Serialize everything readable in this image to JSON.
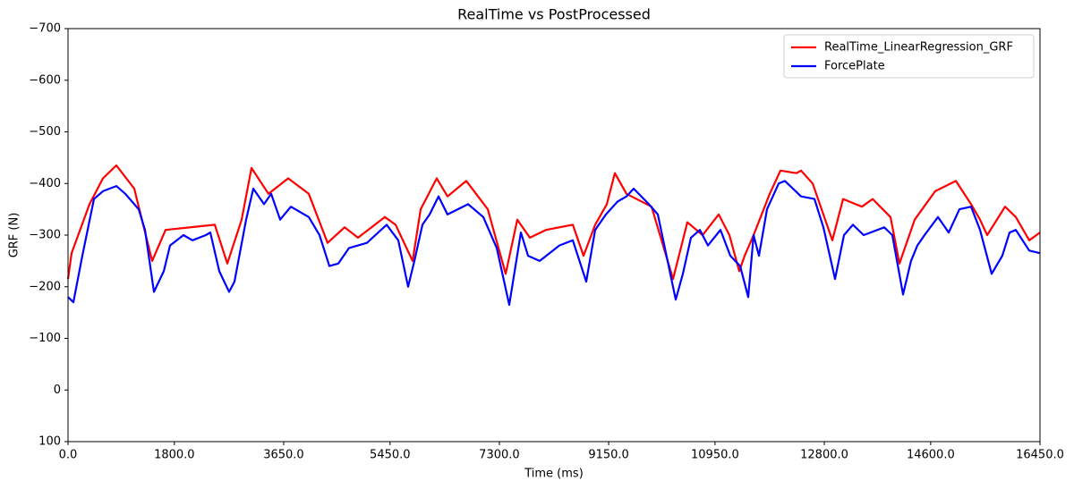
{
  "chart_data": {
    "type": "line",
    "title": "RealTime vs PostProcessed",
    "xlabel": "Time (ms)",
    "ylabel": "GRF (N)",
    "xlim": [
      0,
      16450
    ],
    "ylim": [
      100,
      -700
    ],
    "xticks": [
      {
        "value": 0,
        "label": "0.0"
      },
      {
        "value": 1800,
        "label": "1800.0"
      },
      {
        "value": 3650,
        "label": "3650.0"
      },
      {
        "value": 5450,
        "label": "5450.0"
      },
      {
        "value": 7300,
        "label": "7300.0"
      },
      {
        "value": 9150,
        "label": "9150.0"
      },
      {
        "value": 10950,
        "label": "10950.0"
      },
      {
        "value": 12800,
        "label": "12800.0"
      },
      {
        "value": 14600,
        "label": "14600.0"
      },
      {
        "value": 16450,
        "label": "16450.0"
      }
    ],
    "yticks": [
      {
        "value": -700,
        "label": "−700"
      },
      {
        "value": -600,
        "label": "−600"
      },
      {
        "value": -500,
        "label": "−500"
      },
      {
        "value": -400,
        "label": "−400"
      },
      {
        "value": -300,
        "label": "−300"
      },
      {
        "value": -200,
        "label": "−200"
      },
      {
        "value": -100,
        "label": "−100"
      },
      0,
      100
    ],
    "legend": "upper right",
    "grid": false,
    "series": [
      {
        "name": "RealTime_LinearRegression_GRF",
        "color": "#ff0000",
        "x": [
          0,
          61,
          364,
          591,
          818,
          1121,
          1272,
          1424,
          1651,
          2484,
          2696,
          2938,
          3105,
          3393,
          3726,
          4075,
          4393,
          4680,
          4908,
          5362,
          5544,
          5832,
          5968,
          6195,
          6241,
          6422,
          6740,
          7104,
          7407,
          7604,
          7816,
          8088,
          8543,
          8725,
          8922,
          9119,
          9255,
          9452,
          9876,
          10239,
          10482,
          10739,
          11012,
          11194,
          11360,
          11451,
          11603,
          11875,
          12057,
          12330,
          12405,
          12602,
          12936,
          13117,
          13435,
          13617,
          13920,
          14072,
          14329,
          14677,
          15026,
          15283,
          15435,
          15556,
          15859,
          16041,
          16268,
          16450
        ],
        "values": [
          -215,
          -265,
          -360,
          -410,
          -435,
          -390,
          -320,
          -250,
          -310,
          -320,
          -245,
          -330,
          -430,
          -380,
          -410,
          -380,
          -285,
          -315,
          -295,
          -335,
          -320,
          -250,
          -350,
          -400,
          -410,
          -375,
          -405,
          -350,
          -225,
          -330,
          -295,
          -310,
          -320,
          -260,
          -320,
          -360,
          -420,
          -380,
          -355,
          -215,
          -325,
          -300,
          -340,
          -300,
          -230,
          -260,
          -300,
          -380,
          -425,
          -420,
          -425,
          -400,
          -290,
          -370,
          -355,
          -370,
          -335,
          -245,
          -330,
          -385,
          -405,
          -360,
          -330,
          -300,
          -355,
          -335,
          -290,
          -305
        ]
      },
      {
        "name": "ForcePlate",
        "color": "#0000ff",
        "x": [
          0,
          91,
          242,
          439,
          591,
          818,
          969,
          1197,
          1303,
          1454,
          1621,
          1727,
          1954,
          2105,
          2333,
          2408,
          2560,
          2726,
          2817,
          3014,
          3135,
          3317,
          3438,
          3590,
          3772,
          4075,
          4256,
          4423,
          4574,
          4756,
          5059,
          5392,
          5589,
          5756,
          5862,
          5998,
          6119,
          6271,
          6422,
          6771,
          7028,
          7255,
          7467,
          7664,
          7786,
          7982,
          8316,
          8543,
          8770,
          8922,
          9103,
          9300,
          9452,
          9573,
          9830,
          9982,
          10285,
          10406,
          10542,
          10694,
          10830,
          11042,
          11209,
          11375,
          11512,
          11603,
          11694,
          11830,
          12027,
          12133,
          12405,
          12633,
          12784,
          12981,
          13132,
          13284,
          13466,
          13814,
          13950,
          14132,
          14268,
          14375,
          14496,
          14723,
          14905,
          15086,
          15283,
          15435,
          15632,
          15813,
          15935,
          16041,
          16268,
          16450
        ],
        "values": [
          -180,
          -170,
          -260,
          -370,
          -385,
          -395,
          -380,
          -350,
          -310,
          -190,
          -230,
          -280,
          -300,
          -290,
          -300,
          -305,
          -230,
          -190,
          -210,
          -330,
          -390,
          -360,
          -380,
          -330,
          -355,
          -335,
          -300,
          -240,
          -245,
          -275,
          -285,
          -320,
          -290,
          -200,
          -250,
          -320,
          -340,
          -375,
          -340,
          -360,
          -335,
          -275,
          -165,
          -305,
          -260,
          -250,
          -280,
          -290,
          -210,
          -310,
          -340,
          -365,
          -375,
          -390,
          -360,
          -340,
          -175,
          -225,
          -295,
          -310,
          -280,
          -310,
          -260,
          -240,
          -180,
          -300,
          -260,
          -350,
          -400,
          -405,
          -375,
          -370,
          -315,
          -215,
          -300,
          -320,
          -300,
          -315,
          -300,
          -185,
          -250,
          -280,
          -300,
          -335,
          -305,
          -350,
          -355,
          -310,
          -225,
          -260,
          -305,
          -310,
          -270,
          -265
        ]
      }
    ]
  }
}
